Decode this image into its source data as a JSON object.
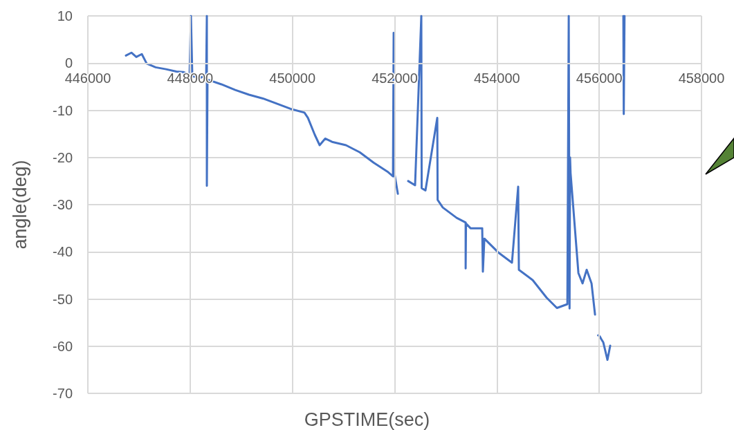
{
  "chart_data": {
    "type": "line",
    "xlabel": "GPSTIME(sec)",
    "ylabel": "angle(deg)",
    "x": [
      446744,
      446852,
      446947,
      447055,
      447150,
      447326,
      447529,
      447732,
      447867,
      447989,
      448016,
      448043,
      448205,
      448314,
      448327,
      448327,
      448340,
      448611,
      448882,
      449152,
      449423,
      449694,
      449964,
      450235,
      450303,
      450438,
      450533,
      450641,
      450776,
      451047,
      451317,
      451588,
      451858,
      451967,
      451980,
      451994,
      452062,
      452150,
      452264,
      452399,
      452521,
      452528,
      452602,
      452833,
      452840,
      452941,
      453212,
      453388,
      453388,
      453395,
      453483,
      453712,
      453725,
      453754,
      454023,
      454294,
      454415,
      454429,
      454700,
      454970,
      455173,
      455377,
      455404,
      455420,
      455430,
      455440,
      455593,
      455674,
      455755,
      455850,
      455918,
      455950,
      455980,
      456010,
      456040,
      456080,
      456161,
      456215,
      456300,
      456472,
      456480,
      456495
    ],
    "series": [
      {
        "color": "#4472c4",
        "values": [
          1.6,
          2.2,
          1.3,
          1.9,
          -0.1,
          -0.9,
          -1.3,
          -1.8,
          -1.9,
          -2.5,
          10,
          -2.8,
          -3.1,
          -2.5,
          10,
          -26,
          -3.5,
          -4.5,
          -5.7,
          -6.7,
          -7.5,
          -8.6,
          -9.7,
          -10.5,
          -11.6,
          -15.2,
          -17.4,
          -16,
          -16.7,
          -17.4,
          -18.9,
          -21.1,
          -23,
          -24,
          6.4,
          -23.3,
          -27.7,
          null,
          -25,
          -25.9,
          10,
          -26.5,
          -27,
          -11.6,
          -29,
          -30.6,
          -32.8,
          -33.8,
          -43.5,
          -34,
          -35,
          -35,
          -44.2,
          -37.2,
          -40.1,
          -42.3,
          -26.2,
          -43.8,
          -46,
          -49.7,
          -51.9,
          -51.1,
          10,
          -52,
          -20,
          -23.3,
          -44.5,
          -46.7,
          -43.8,
          -46.7,
          -53.3,
          null,
          -57.7,
          -57.9,
          -58.5,
          -59.2,
          -62.9,
          -59.9,
          null,
          10,
          -10.8,
          10
        ]
      }
    ],
    "xlim": [
      446000,
      458000
    ],
    "xticks": [
      446000,
      448000,
      450000,
      452000,
      454000,
      456000,
      458000
    ],
    "ylim": [
      -70,
      10
    ],
    "yticks": [
      -70,
      -60,
      -50,
      -40,
      -30,
      -20,
      -10,
      0,
      10
    ],
    "grid": true,
    "marker": "none",
    "line_style": "solid"
  }
}
